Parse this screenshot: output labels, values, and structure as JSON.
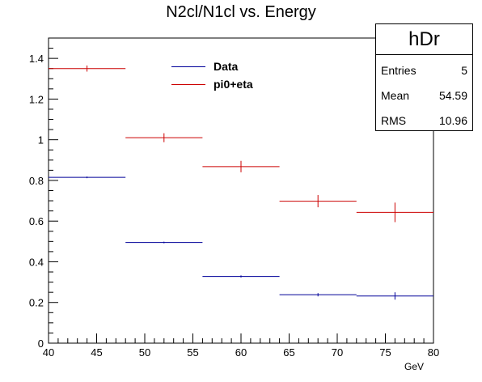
{
  "title": "N2cl/N1cl vs. Energy",
  "stats_box": {
    "name": "hDr",
    "rows": [
      {
        "key": "Entries",
        "value": "5"
      },
      {
        "key": "Mean",
        "value": "54.59"
      },
      {
        "key": "RMS",
        "value": "10.96"
      }
    ]
  },
  "legend": {
    "entries": [
      {
        "label": "Data",
        "color": "#000099"
      },
      {
        "label": "pi0+eta",
        "color": "#cc0000"
      }
    ]
  },
  "chart_data": {
    "type": "scatter",
    "title": "N2cl/N1cl vs. Energy",
    "xlabel": "GeV",
    "ylabel": "",
    "xlim": [
      40,
      80
    ],
    "ylim": [
      0,
      1.5
    ],
    "xticks": [
      40,
      45,
      50,
      55,
      60,
      65,
      70,
      75,
      80
    ],
    "yticks": [
      0,
      0.2,
      0.4,
      0.6,
      0.8,
      1,
      1.2,
      1.4
    ],
    "grid": false,
    "legend_position": "top-center",
    "bins": [
      [
        40,
        48
      ],
      [
        48,
        56
      ],
      [
        56,
        64
      ],
      [
        64,
        72
      ],
      [
        72,
        80
      ]
    ],
    "series": [
      {
        "name": "Data",
        "color": "#000099",
        "x": [
          44,
          52,
          60,
          68,
          76
        ],
        "values": [
          0.815,
          0.495,
          0.328,
          0.238,
          0.232
        ],
        "errors": [
          0.004,
          0.004,
          0.005,
          0.008,
          0.018
        ]
      },
      {
        "name": "pi0+eta",
        "color": "#cc0000",
        "x": [
          44,
          52,
          60,
          68,
          76
        ],
        "values": [
          1.35,
          1.01,
          0.868,
          0.698,
          0.643
        ],
        "errors": [
          0.015,
          0.022,
          0.028,
          0.03,
          0.048
        ]
      }
    ]
  }
}
